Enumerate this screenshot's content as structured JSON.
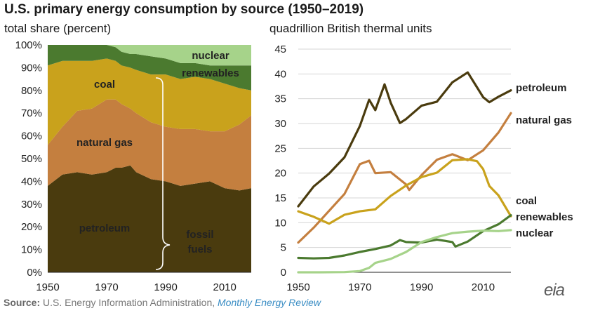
{
  "header": {
    "title": "U.S. primary energy consumption by source (1950–2019)",
    "left_subtitle": "total share (percent)",
    "right_subtitle": "quadrillion British thermal units"
  },
  "source": {
    "label": "Source:",
    "text": "U.S. Energy Information Administration,",
    "publication": "Monthly Energy Review"
  },
  "logo": {
    "text": "eia"
  },
  "colors": {
    "petroleum": "#4a3b0e",
    "natural_gas": "#c47f3f",
    "coal": "#c9a21c",
    "renewables": "#4b7a2f",
    "nuclear": "#a6d38a"
  },
  "chart_data": [
    {
      "type": "area",
      "stacked": true,
      "subtitle": "total share (percent)",
      "ylim": [
        0,
        100
      ],
      "yticks": [
        "0%",
        "10%",
        "20%",
        "30%",
        "40%",
        "50%",
        "60%",
        "70%",
        "80%",
        "90%",
        "100%"
      ],
      "x": [
        1950,
        1955,
        1960,
        1965,
        1970,
        1973,
        1975,
        1978,
        1980,
        1985,
        1990,
        1995,
        2000,
        2005,
        2010,
        2015,
        2019
      ],
      "xticks": [
        "1950",
        "1970",
        "1990",
        "2010"
      ],
      "series": [
        {
          "name": "petroleum",
          "values": [
            38,
            43,
            44,
            43,
            44,
            46,
            46,
            47,
            44,
            41,
            40,
            38,
            39,
            40,
            37,
            36,
            37
          ]
        },
        {
          "name": "natural gas",
          "values": [
            18,
            21,
            27,
            29,
            32,
            30,
            28,
            25,
            26,
            25,
            24,
            25,
            24,
            22,
            25,
            29,
            32
          ]
        },
        {
          "name": "coal",
          "values": [
            35,
            29,
            22,
            21,
            18,
            17,
            17,
            18,
            19,
            21,
            23,
            22,
            23,
            23,
            21,
            16,
            11
          ]
        },
        {
          "name": "renewables",
          "values": [
            9,
            7,
            7,
            7,
            6,
            6,
            6,
            6,
            7,
            8,
            7,
            7,
            6,
            6,
            8,
            10,
            11
          ]
        },
        {
          "name": "nuclear",
          "values": [
            0,
            0,
            0,
            0,
            0,
            1,
            3,
            4,
            4,
            5,
            6,
            8,
            8,
            9,
            9,
            9,
            9
          ]
        }
      ],
      "labels": {
        "nuclear": "nuclear",
        "renewables": "renewables",
        "coal": "coal",
        "natural_gas": "natural gas",
        "petroleum": "petroleum",
        "fossil_fuels": "fossil fuels"
      }
    },
    {
      "type": "line",
      "subtitle": "quadrillion British thermal units",
      "ylim": [
        0,
        45
      ],
      "yticks": [
        "0",
        "5",
        "10",
        "15",
        "20",
        "25",
        "30",
        "35",
        "40",
        "45"
      ],
      "xticks": [
        "1950",
        "1970",
        "1990",
        "2010"
      ],
      "series": [
        {
          "name": "petroleum",
          "x": [
            1950,
            1955,
            1960,
            1965,
            1970,
            1973,
            1975,
            1978,
            1980,
            1983,
            1985,
            1990,
            1995,
            2000,
            2005,
            2008,
            2010,
            2012,
            2015,
            2019
          ],
          "values": [
            13.3,
            17.3,
            19.9,
            23.2,
            29.5,
            34.8,
            32.7,
            37.9,
            34.2,
            30.1,
            30.9,
            33.6,
            34.4,
            38.3,
            40.3,
            37.3,
            35.3,
            34.3,
            35.4,
            36.7
          ]
        },
        {
          "name": "natural gas",
          "x": [
            1950,
            1955,
            1960,
            1965,
            1970,
            1973,
            1975,
            1980,
            1985,
            1986,
            1990,
            1995,
            2000,
            2005,
            2010,
            2015,
            2019
          ],
          "values": [
            6.0,
            9.0,
            12.4,
            15.8,
            21.8,
            22.5,
            20.0,
            20.2,
            17.7,
            16.6,
            19.6,
            22.7,
            23.8,
            22.6,
            24.6,
            28.2,
            32.1
          ]
        },
        {
          "name": "coal",
          "x": [
            1950,
            1955,
            1960,
            1965,
            1970,
            1975,
            1980,
            1985,
            1990,
            1995,
            2000,
            2005,
            2008,
            2010,
            2012,
            2015,
            2019
          ],
          "values": [
            12.3,
            11.2,
            9.8,
            11.6,
            12.3,
            12.7,
            15.4,
            17.5,
            19.2,
            20.1,
            22.6,
            22.8,
            22.4,
            20.8,
            17.4,
            15.5,
            11.3
          ]
        },
        {
          "name": "renewables",
          "x": [
            1950,
            1955,
            1960,
            1965,
            1970,
            1975,
            1980,
            1983,
            1985,
            1990,
            1995,
            2000,
            2001,
            2005,
            2010,
            2015,
            2019
          ],
          "values": [
            2.9,
            2.8,
            2.9,
            3.4,
            4.1,
            4.7,
            5.4,
            6.5,
            6.1,
            6.0,
            6.6,
            6.1,
            5.2,
            6.2,
            8.3,
            9.7,
            11.5
          ]
        },
        {
          "name": "nuclear",
          "x": [
            1950,
            1957,
            1965,
            1970,
            1973,
            1975,
            1980,
            1985,
            1990,
            1995,
            2000,
            2005,
            2010,
            2015,
            2019
          ],
          "values": [
            0,
            0,
            0.04,
            0.24,
            0.91,
            1.9,
            2.7,
            4.1,
            6.1,
            7.1,
            7.9,
            8.2,
            8.4,
            8.3,
            8.5
          ]
        }
      ],
      "labels": {
        "petroleum": "petroleum",
        "natural_gas": "natural gas",
        "coal": "coal",
        "renewables": "renewables",
        "nuclear": "nuclear"
      }
    }
  ]
}
